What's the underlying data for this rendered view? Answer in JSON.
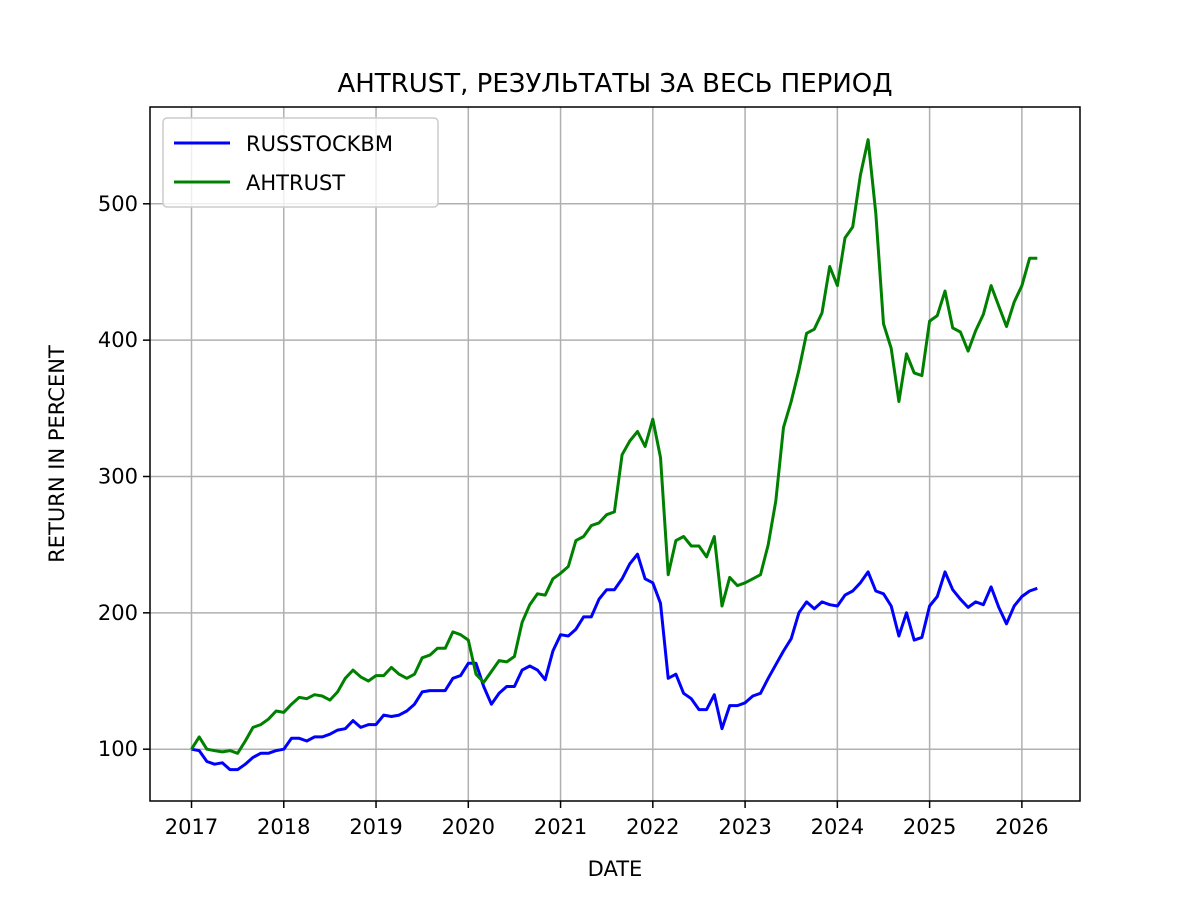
{
  "chart_data": {
    "type": "line",
    "title": "AHTRUST, РЕЗУЛЬТАТЫ ЗА ВЕСЬ ПЕРИОД",
    "xlabel": "DATE",
    "ylabel": "RETURN IN PERCENT",
    "x_start": "2017-01",
    "x_frequency": "monthly",
    "xlim": [
      2016.55,
      2026.63
    ],
    "ylim": [
      62,
      571
    ],
    "xticks": [
      "2017",
      "2018",
      "2019",
      "2020",
      "2021",
      "2022",
      "2023",
      "2024",
      "2025",
      "2026"
    ],
    "yticks": [
      100,
      200,
      300,
      400,
      500
    ],
    "grid": true,
    "legend": "top-left",
    "series": [
      {
        "name": "RUSSTOCKBM",
        "color": "#0000ff",
        "values": [
          100,
          99,
          91,
          89,
          90,
          85,
          85,
          89,
          94,
          97,
          97,
          99,
          100,
          108,
          108,
          106,
          109,
          109,
          111,
          114,
          115,
          121,
          116,
          118,
          118,
          125,
          124,
          125,
          128,
          133,
          142,
          143,
          143,
          143,
          152,
          154,
          163,
          163,
          146,
          133,
          141,
          146,
          146,
          158,
          161,
          158,
          151,
          172,
          184,
          183,
          188,
          197,
          197,
          210,
          217,
          217,
          225,
          236,
          243,
          225,
          222,
          207,
          152,
          155,
          141,
          137,
          129,
          129,
          140,
          115,
          132,
          132,
          134,
          139,
          141,
          152,
          162,
          172,
          181,
          200,
          208,
          203,
          208,
          206,
          205,
          213,
          216,
          222,
          230,
          216,
          214,
          205,
          183,
          200,
          180,
          182,
          205,
          212,
          230,
          217,
          210,
          204,
          208,
          206,
          219,
          204,
          192,
          205,
          212,
          216,
          218
        ]
      },
      {
        "name": "AHTRUST",
        "color": "#008000",
        "values": [
          100,
          109,
          100,
          99,
          98,
          99,
          97,
          106,
          116,
          118,
          122,
          128,
          127,
          133,
          138,
          137,
          140,
          139,
          136,
          142,
          152,
          158,
          153,
          150,
          154,
          154,
          160,
          155,
          152,
          155,
          167,
          169,
          174,
          174,
          186,
          184,
          180,
          155,
          149,
          157,
          165,
          164,
          168,
          193,
          206,
          214,
          213,
          225,
          229,
          234,
          253,
          256,
          264,
          266,
          272,
          274,
          316,
          326,
          333,
          322,
          342,
          314,
          228,
          253,
          256,
          249,
          249,
          241,
          256,
          205,
          226,
          220,
          222,
          225,
          228,
          250,
          282,
          336,
          355,
          378,
          405,
          408,
          420,
          454,
          440,
          475,
          483,
          521,
          547,
          493,
          412,
          394,
          355,
          390,
          376,
          374,
          414,
          418,
          436,
          409,
          406,
          392,
          407,
          419,
          440,
          425,
          410,
          428,
          440,
          460,
          460
        ]
      }
    ]
  }
}
